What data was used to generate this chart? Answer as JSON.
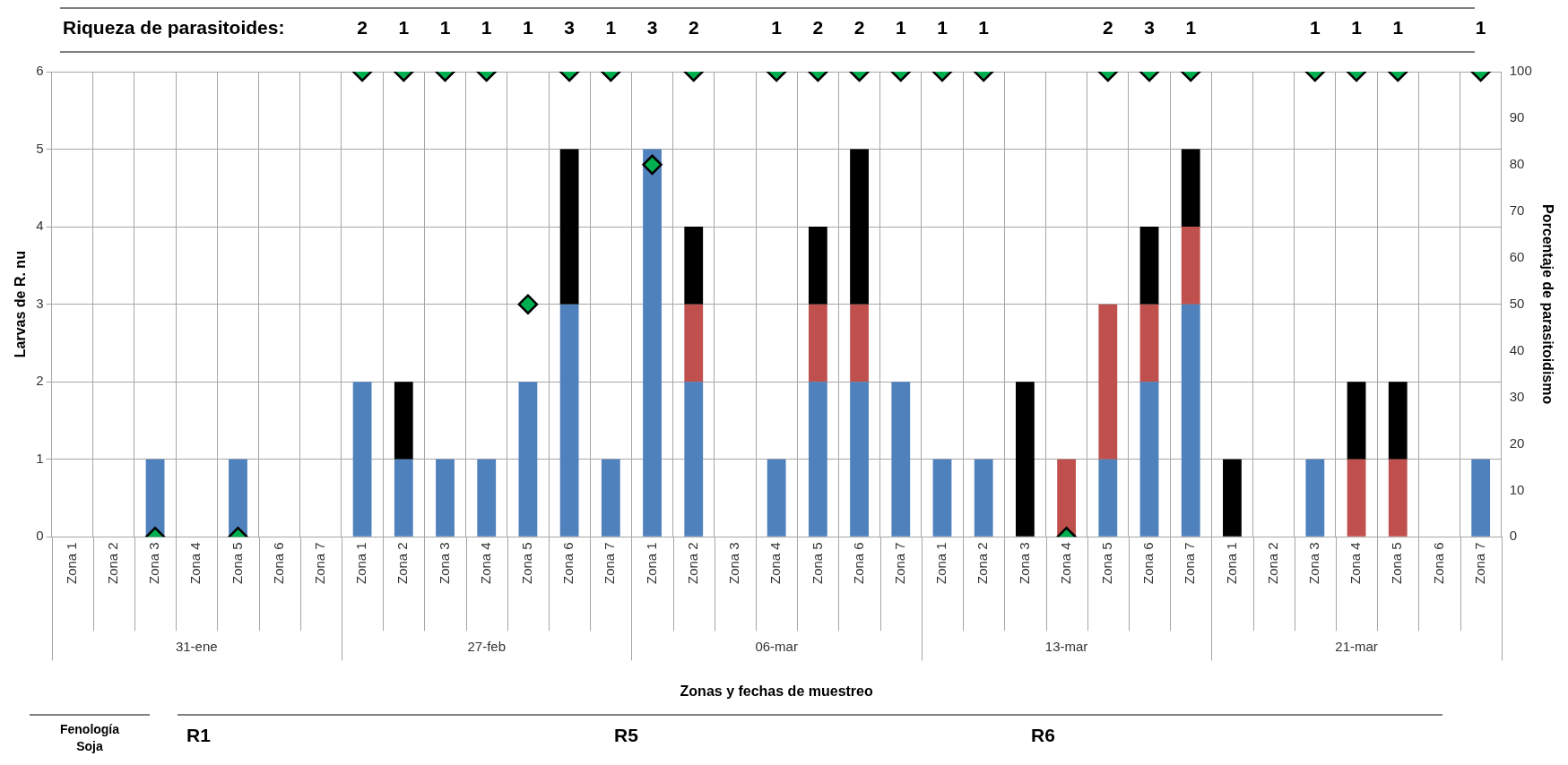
{
  "chart_data": {
    "type": "bar",
    "stacked": true,
    "categories": [
      "Zona 1",
      "Zona 2",
      "Zona 3",
      "Zona 4",
      "Zona 5",
      "Zona 6",
      "Zona 7",
      "Zona 1",
      "Zona 2",
      "Zona 3",
      "Zona 4",
      "Zona 5",
      "Zona 6",
      "Zona 7",
      "Zona 1",
      "Zona 2",
      "Zona 3",
      "Zona 4",
      "Zona 5",
      "Zona 6",
      "Zona 7",
      "Zona 1",
      "Zona 2",
      "Zona 3",
      "Zona 4",
      "Zona 5",
      "Zona 6",
      "Zona 7",
      "Zona 1",
      "Zona 2",
      "Zona 3",
      "Zona 4",
      "Zona 5",
      "Zona 6",
      "Zona 7"
    ],
    "series": [
      {
        "color": "#4f81bd",
        "values": [
          0,
          0,
          1,
          0,
          1,
          0,
          0,
          2,
          1,
          1,
          1,
          2,
          3,
          1,
          5,
          2,
          0,
          1,
          2,
          2,
          2,
          1,
          1,
          0,
          0,
          1,
          2,
          3,
          0,
          0,
          1,
          0,
          0,
          0,
          1
        ]
      },
      {
        "color": "#c0504d",
        "values": [
          0,
          0,
          0,
          0,
          0,
          0,
          0,
          0,
          0,
          0,
          0,
          0,
          0,
          0,
          0,
          1,
          0,
          0,
          1,
          1,
          0,
          0,
          0,
          0,
          1,
          2,
          1,
          1,
          0,
          0,
          0,
          1,
          1,
          0,
          0
        ]
      },
      {
        "color": "#000000",
        "values": [
          0,
          0,
          0,
          0,
          0,
          0,
          0,
          0,
          1,
          0,
          0,
          0,
          2,
          0,
          0,
          1,
          0,
          0,
          1,
          2,
          0,
          0,
          0,
          2,
          0,
          0,
          1,
          1,
          1,
          0,
          0,
          1,
          1,
          0,
          0
        ]
      },
      {
        "type": "scatter",
        "axis": "y2",
        "color": "#00b050",
        "values": [
          null,
          null,
          0,
          null,
          0,
          null,
          null,
          100,
          100,
          100,
          100,
          50,
          100,
          100,
          80,
          100,
          null,
          100,
          100,
          100,
          100,
          100,
          100,
          null,
          0,
          100,
          100,
          100,
          null,
          null,
          100,
          100,
          100,
          null,
          100
        ]
      }
    ],
    "ylim": [
      0,
      6
    ],
    "yticks": [
      0,
      1,
      2,
      3,
      4,
      5,
      6
    ],
    "y2lim": [
      0,
      100
    ],
    "y2ticks": [
      0,
      10,
      20,
      30,
      40,
      50,
      60,
      70,
      80,
      90,
      100
    ],
    "ylabel": "Larvas de R. nu",
    "y2label": "Porcentaje de parasitoidismo",
    "annotations": [
      "31-ene",
      "27-feb",
      "06-mar",
      "13-mar",
      "21-mar",
      "Zonas y fechas de muestreo",
      "Riqueza de parasitoides:",
      "Fenología Soja",
      "R1",
      "R5",
      "R6",
      "2",
      "1",
      "1",
      "1",
      "1",
      "3",
      "1",
      "3",
      "2",
      "1",
      "2",
      "2",
      "1",
      "1",
      "1",
      "2",
      "3",
      "1",
      "1",
      "1",
      "1",
      "1"
    ],
    "grid": true,
    "legend": false,
    "marker": "diamond"
  }
}
